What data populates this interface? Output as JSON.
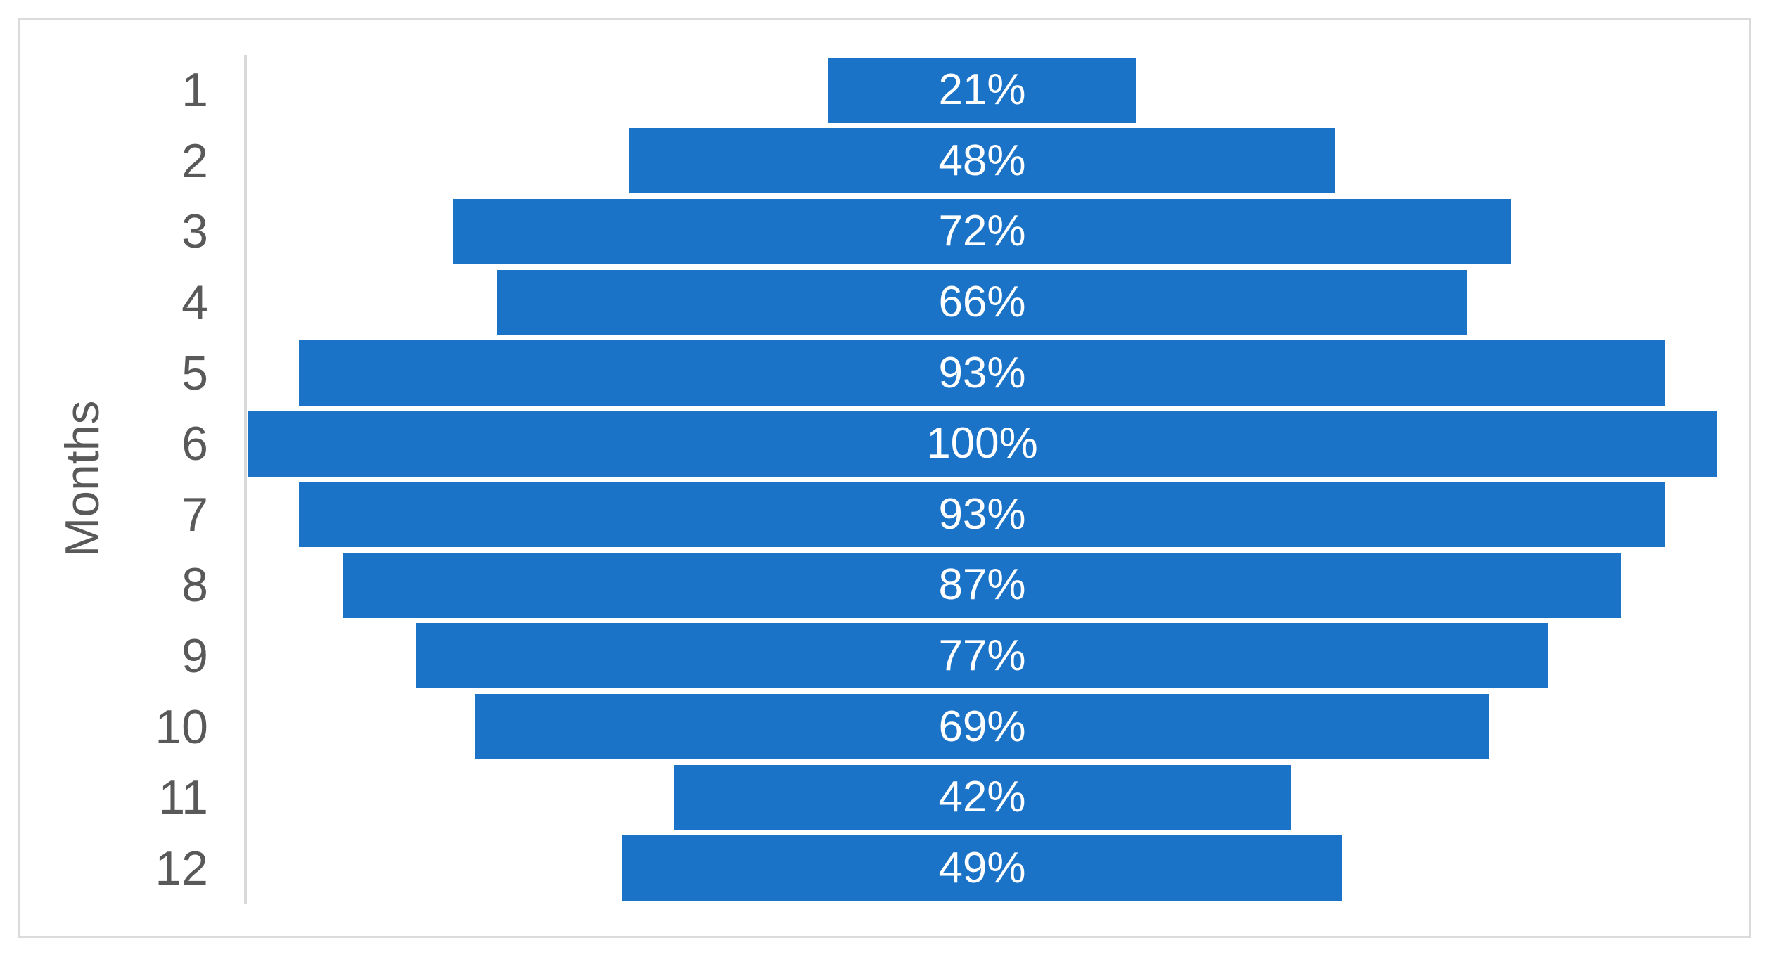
{
  "chart_data": {
    "type": "bar",
    "subtype": "centered-funnel",
    "orientation": "horizontal",
    "title": "",
    "xlabel": "",
    "ylabel": "Months",
    "categories": [
      "1",
      "2",
      "3",
      "4",
      "5",
      "6",
      "7",
      "8",
      "9",
      "10",
      "11",
      "12"
    ],
    "values": [
      21,
      48,
      72,
      66,
      93,
      100,
      93,
      87,
      77,
      69,
      42,
      49
    ],
    "value_labels": [
      "21%",
      "48%",
      "72%",
      "66%",
      "93%",
      "100%",
      "93%",
      "87%",
      "77%",
      "69%",
      "42%",
      "49%"
    ],
    "xlim": [
      0,
      100
    ],
    "grid": false,
    "legend": false,
    "colors": {
      "bar": "#1B73C8",
      "value_label": "#FFFFFF",
      "tick_label": "#595959",
      "axis_title": "#595959",
      "axis_line": "#D9D9D9",
      "chart_border": "#DBDBDB",
      "background": "#FFFFFF"
    }
  }
}
